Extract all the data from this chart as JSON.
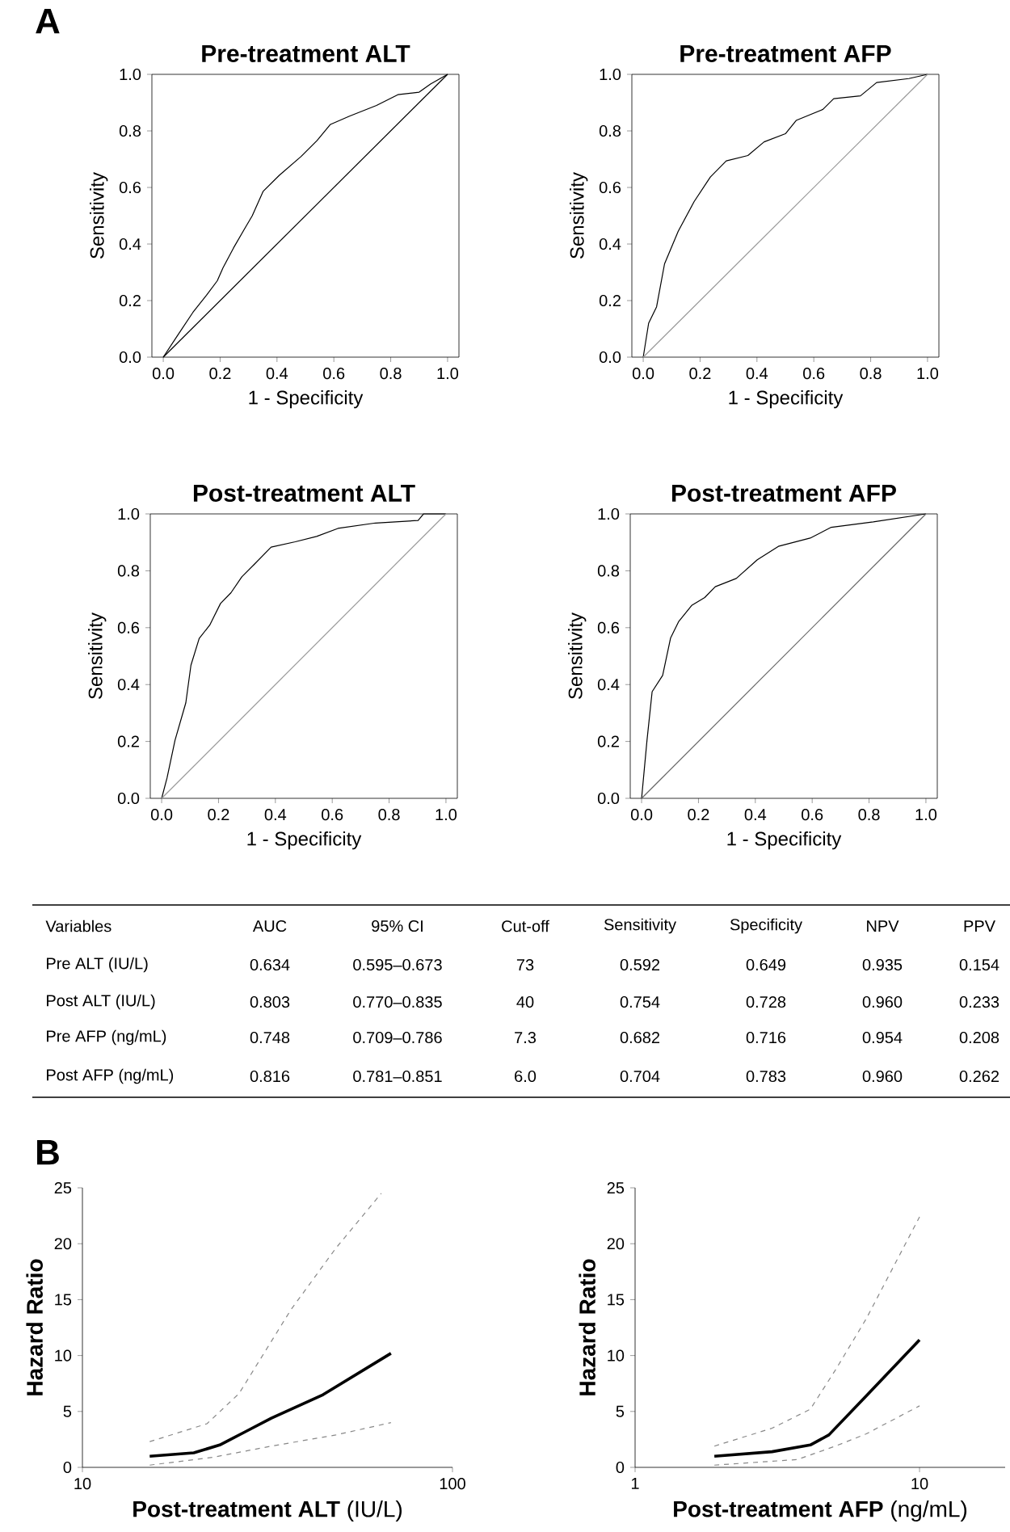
{
  "chart_data": [
    {
      "type": "line",
      "title": "Pre-treatment ALT",
      "xlabel": "1 - Specificity",
      "ylabel": "Sensitivity",
      "annotations": [
        "A"
      ],
      "xlim": [
        -0.04,
        1.04
      ],
      "ylim": [
        0,
        1
      ],
      "xticks": [
        {
          "value": 0,
          "label": "0.0"
        },
        {
          "value": 0.2,
          "label": "0.2"
        },
        {
          "value": 0.4,
          "label": "0.4"
        },
        {
          "value": 0.6,
          "label": "0.6"
        },
        {
          "value": 0.8,
          "label": "0.8"
        },
        {
          "value": 1,
          "label": "1.0"
        }
      ],
      "yticks": [
        {
          "value": 0,
          "label": "0.0"
        },
        {
          "value": 0.2,
          "label": "0.2"
        },
        {
          "value": 0.4,
          "label": "0.4"
        },
        {
          "value": 0.6,
          "label": "0.6"
        },
        {
          "value": 0.8,
          "label": "0.8"
        },
        {
          "value": 1,
          "label": "1.0"
        }
      ],
      "series": [
        {
          "color": "#000000",
          "x": [
            0,
            0.047,
            0.104,
            0.152,
            0.19,
            0.21,
            0.247,
            0.285,
            0.313,
            0.351,
            0.408,
            0.484,
            0.541,
            0.588,
            0.655,
            0.75,
            0.825,
            0.9,
            0.94,
            1
          ],
          "values": [
            0,
            0.072,
            0.158,
            0.219,
            0.27,
            0.316,
            0.386,
            0.452,
            0.5,
            0.586,
            0.643,
            0.709,
            0.766,
            0.823,
            0.852,
            0.89,
            0.928,
            0.937,
            0.966,
            1
          ]
        },
        {
          "color": "#000000",
          "x": [
            0,
            1
          ],
          "values": [
            0,
            1
          ]
        }
      ]
    },
    {
      "type": "line",
      "title": "Pre-treatment AFP",
      "xlabel": "1 - Specificity",
      "ylabel": "Sensitivity",
      "xlim": [
        -0.04,
        1.04
      ],
      "ylim": [
        0,
        1
      ],
      "xticks": [
        {
          "value": 0,
          "label": "0.0"
        },
        {
          "value": 0.2,
          "label": "0.2"
        },
        {
          "value": 0.4,
          "label": "0.4"
        },
        {
          "value": 0.6,
          "label": "0.6"
        },
        {
          "value": 0.8,
          "label": "0.8"
        },
        {
          "value": 1,
          "label": "1.0"
        }
      ],
      "yticks": [
        {
          "value": 0,
          "label": "0.0"
        },
        {
          "value": 0.2,
          "label": "0.2"
        },
        {
          "value": 0.4,
          "label": "0.4"
        },
        {
          "value": 0.6,
          "label": "0.6"
        },
        {
          "value": 0.8,
          "label": "0.8"
        },
        {
          "value": 1,
          "label": "1.0"
        }
      ],
      "series": [
        {
          "color": "#000000",
          "x": [
            0,
            0.019,
            0.047,
            0.075,
            0.123,
            0.179,
            0.236,
            0.292,
            0.368,
            0.425,
            0.5,
            0.538,
            0.632,
            0.67,
            0.764,
            0.821,
            0.934,
            1
          ],
          "values": [
            0,
            0.12,
            0.178,
            0.33,
            0.445,
            0.55,
            0.637,
            0.694,
            0.713,
            0.761,
            0.79,
            0.837,
            0.876,
            0.914,
            0.924,
            0.971,
            0.985,
            1
          ]
        },
        {
          "color": "#999999",
          "x": [
            0,
            1
          ],
          "values": [
            0,
            1
          ]
        }
      ]
    },
    {
      "type": "line",
      "title": "Post-treatment ALT",
      "xlabel": "1 - Specificity",
      "ylabel": "Sensitivity",
      "xlim": [
        -0.04,
        1.04
      ],
      "ylim": [
        0,
        1
      ],
      "xticks": [
        {
          "value": 0,
          "label": "0.0"
        },
        {
          "value": 0.2,
          "label": "0.2"
        },
        {
          "value": 0.4,
          "label": "0.4"
        },
        {
          "value": 0.6,
          "label": "0.6"
        },
        {
          "value": 0.8,
          "label": "0.8"
        },
        {
          "value": 1,
          "label": "1.0"
        }
      ],
      "yticks": [
        {
          "value": 0,
          "label": "0.0"
        },
        {
          "value": 0.2,
          "label": "0.2"
        },
        {
          "value": 0.4,
          "label": "0.4"
        },
        {
          "value": 0.6,
          "label": "0.6"
        },
        {
          "value": 0.8,
          "label": "0.8"
        },
        {
          "value": 1,
          "label": "1.0"
        }
      ],
      "series": [
        {
          "color": "#000000",
          "x": [
            0,
            0.019,
            0.047,
            0.085,
            0.103,
            0.132,
            0.169,
            0.207,
            0.244,
            0.282,
            0.329,
            0.385,
            0.47,
            0.545,
            0.62,
            0.752,
            0.902,
            0.921,
            1
          ],
          "values": [
            0,
            0.072,
            0.204,
            0.336,
            0.468,
            0.562,
            0.609,
            0.685,
            0.723,
            0.779,
            0.826,
            0.883,
            0.902,
            0.921,
            0.949,
            0.968,
            0.977,
            1,
            1
          ]
        },
        {
          "color": "#999999",
          "x": [
            0,
            1
          ],
          "values": [
            0,
            1
          ]
        }
      ]
    },
    {
      "type": "line",
      "title": "Post-treatment AFP",
      "xlabel": "1 - Specificity",
      "ylabel": "Sensitivity",
      "xlim": [
        -0.04,
        1.04
      ],
      "ylim": [
        0,
        1
      ],
      "xticks": [
        {
          "value": 0,
          "label": "0.0"
        },
        {
          "value": 0.2,
          "label": "0.2"
        },
        {
          "value": 0.4,
          "label": "0.4"
        },
        {
          "value": 0.6,
          "label": "0.6"
        },
        {
          "value": 0.8,
          "label": "0.8"
        },
        {
          "value": 1,
          "label": "1.0"
        }
      ],
      "yticks": [
        {
          "value": 0,
          "label": "0.0"
        },
        {
          "value": 0.2,
          "label": "0.2"
        },
        {
          "value": 0.4,
          "label": "0.4"
        },
        {
          "value": 0.6,
          "label": "0.6"
        },
        {
          "value": 0.8,
          "label": "0.8"
        },
        {
          "value": 1,
          "label": "1.0"
        }
      ],
      "series": [
        {
          "color": "#000000",
          "x": [
            0,
            0.019,
            0.037,
            0.074,
            0.102,
            0.13,
            0.176,
            0.222,
            0.259,
            0.333,
            0.407,
            0.481,
            0.593,
            0.667,
            0.815,
            1
          ],
          "values": [
            0,
            0.205,
            0.375,
            0.432,
            0.564,
            0.621,
            0.678,
            0.706,
            0.744,
            0.773,
            0.839,
            0.886,
            0.915,
            0.953,
            0.972,
            1
          ]
        },
        {
          "color": "#666666",
          "x": [
            0,
            1
          ],
          "values": [
            0,
            1
          ]
        }
      ]
    },
    {
      "type": "other",
      "categories": [
        "Variables",
        "AUC",
        "95% CI",
        "Cut-off",
        "Sensitivity",
        "Specificity",
        "NPV",
        "PPV"
      ],
      "annotations": [
        "Pre ALT (IU/L)",
        "0.634",
        "0.595–0.673",
        "73",
        "0.592",
        "0.649",
        "0.935",
        "0.154",
        "Post ALT (IU/L)",
        "0.803",
        "0.770–0.835",
        "40",
        "0.754",
        "0.728",
        "0.960",
        "0.233",
        "Pre AFP (ng/mL)",
        "0.748",
        "0.709–0.786",
        "7.3",
        "0.682",
        "0.716",
        "0.954",
        "0.208",
        "Post AFP (ng/mL)",
        "0.816",
        "0.781–0.851",
        "6.0",
        "0.704",
        "0.783",
        "0.960",
        "0.262"
      ]
    },
    {
      "type": "line",
      "xlabel": "**Post-treatment ALT** (IU/L)",
      "ylabel": "Hazard Ratio",
      "annotations": [
        "B"
      ],
      "log": "x",
      "xlim": [
        10,
        100
      ],
      "ylim": [
        0,
        25
      ],
      "xticks": [
        10,
        100
      ],
      "yticks": [
        0,
        5,
        10,
        15,
        20,
        25
      ],
      "series": [
        {
          "color": "#000000",
          "line_style": "solid",
          "x": [
            15.2,
            20.0,
            23.5,
            27.6,
            32.4,
            44.7,
            68.2
          ],
          "values": [
            1.0,
            1.3,
            2.0,
            3.2,
            4.4,
            6.5,
            10.2
          ]
        },
        {
          "color": "#888888",
          "line_style": "dashed",
          "x": [
            15.2,
            21.7,
            26.5,
            36.6,
            48.4,
            64.2
          ],
          "values": [
            2.3,
            3.9,
            6.6,
            14.1,
            19.6,
            24.5
          ]
        },
        {
          "color": "#888888",
          "line_style": "dashed",
          "x": [
            15.2,
            22.5,
            32.4,
            48.4,
            68.2
          ],
          "values": [
            0.2,
            0.9,
            1.9,
            2.9,
            4.0
          ]
        }
      ]
    },
    {
      "type": "line",
      "xlabel": "**Post-treatment AFP** (ng/mL)",
      "ylabel": "Hazard Ratio",
      "log": "x",
      "xlim": [
        1,
        20
      ],
      "ylim": [
        0,
        25
      ],
      "xticks": [
        1,
        10
      ],
      "yticks": [
        0,
        5,
        10,
        15,
        20,
        25
      ],
      "series": [
        {
          "color": "#000000",
          "line_style": "solid",
          "x": [
            1.9,
            3.03,
            4.13,
            4.8,
            6.5,
            10
          ],
          "values": [
            1.0,
            1.4,
            2.0,
            2.9,
            6.4,
            11.4
          ]
        },
        {
          "color": "#888888",
          "line_style": "dashed",
          "x": [
            1.9,
            3.03,
            4.13,
            5.06,
            6.5,
            10
          ],
          "values": [
            1.9,
            3.5,
            5.2,
            8.7,
            13.3,
            22.4
          ]
        },
        {
          "color": "#888888",
          "line_style": "dashed",
          "x": [
            1.9,
            3.72,
            5.06,
            6.5,
            10
          ],
          "values": [
            0.2,
            0.7,
            1.9,
            3.0,
            5.5
          ]
        }
      ]
    }
  ]
}
